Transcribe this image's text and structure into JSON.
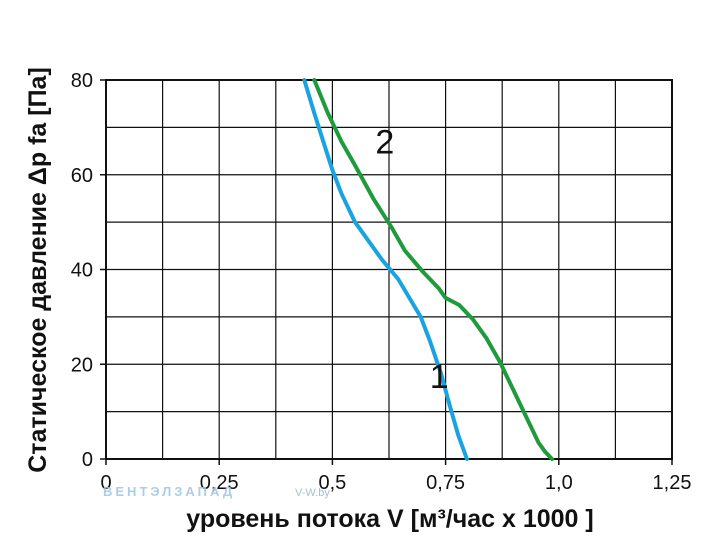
{
  "chart_data": {
    "type": "line",
    "xlabel": "уровень потока  V [м³/час х 1000 ]",
    "ylabel": "Статическое давление  Δp fa [Па]",
    "xlim": [
      0,
      1.25
    ],
    "ylim": [
      0,
      80
    ],
    "x_ticks": [
      0,
      0.25,
      0.5,
      0.75,
      1.0,
      1.25
    ],
    "x_tick_labels": [
      "0",
      "0,25",
      "0,5",
      "0,75",
      "1,0",
      "1,25"
    ],
    "y_ticks": [
      0,
      20,
      40,
      60,
      80
    ],
    "y_tick_labels": [
      "0",
      "20",
      "40",
      "60",
      "80"
    ],
    "x_grid_step": 0.125,
    "y_grid_step": 10,
    "grid": true,
    "series": [
      {
        "name": "1",
        "color": "#1aa3e0",
        "x": [
          0.438,
          0.46,
          0.48,
          0.5,
          0.52,
          0.55,
          0.58,
          0.61,
          0.645,
          0.67,
          0.695,
          0.715,
          0.74,
          0.76,
          0.778,
          0.797
        ],
        "y": [
          80,
          73,
          67,
          61,
          56,
          50,
          46,
          42,
          38,
          34,
          30,
          25,
          18,
          11,
          5,
          0
        ]
      },
      {
        "name": "2",
        "color": "#1f9a3c",
        "x": [
          0.46,
          0.49,
          0.52,
          0.55,
          0.59,
          0.63,
          0.66,
          0.7,
          0.735,
          0.75,
          0.78,
          0.81,
          0.84,
          0.87,
          0.9,
          0.93,
          0.955,
          0.97,
          0.985
        ],
        "y": [
          80,
          73,
          67,
          62,
          55,
          49,
          44,
          39.5,
          36,
          34,
          32.5,
          29.5,
          25.5,
          20.5,
          14.5,
          8.5,
          3.5,
          1.5,
          0
        ]
      }
    ]
  },
  "watermark": {
    "text": "ВЕНТЭЛЗАПАД",
    "small": "V-W.by"
  }
}
